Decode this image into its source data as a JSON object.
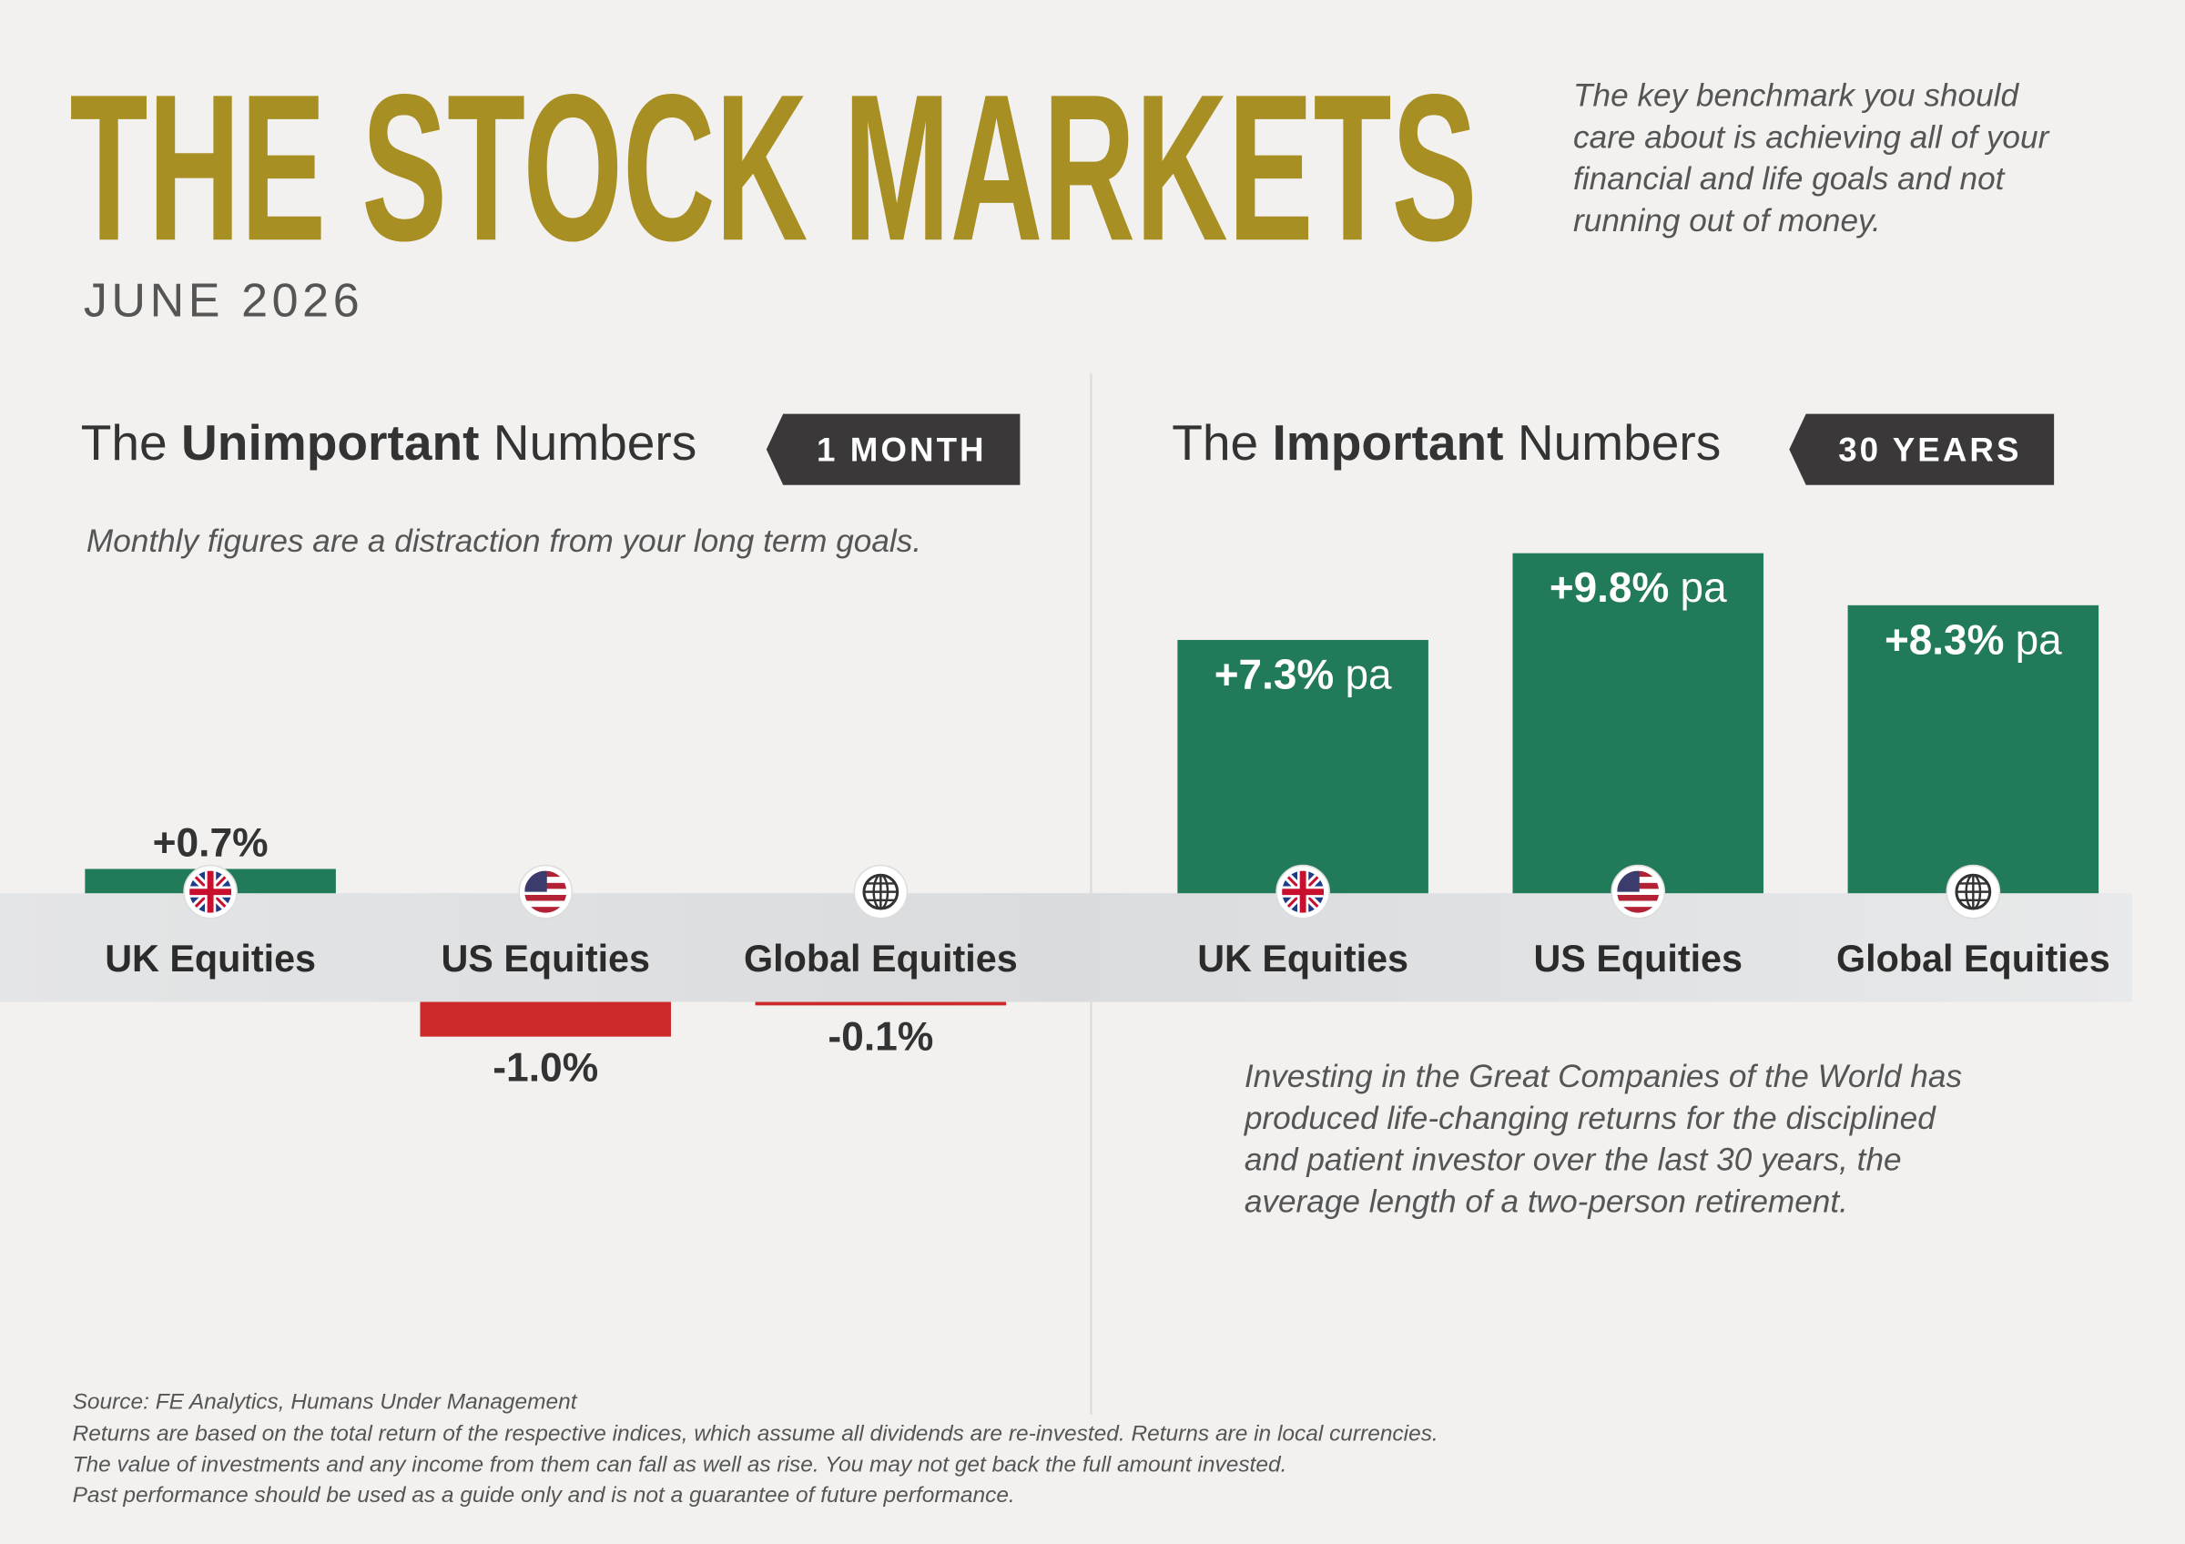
{
  "header": {
    "title": "THE STOCK MARKETS",
    "subtitle": "JUNE 2026",
    "quote": [
      "The key benchmark you should",
      "care about is achieving all of your",
      "financial and life goals and not",
      "running out of money."
    ]
  },
  "chart_data": [
    {
      "type": "bar",
      "title": [
        "The",
        "Unimportant",
        "Numbers"
      ],
      "period": "1 MONTH",
      "subtitle": "Monthly figures are a distraction from your long term goals.",
      "categories": [
        "UK Equities",
        "US Equities",
        "Global Equities"
      ],
      "values": [
        0.7,
        -1.0,
        -0.1
      ],
      "value_labels": [
        "+0.7%",
        "-1.0%",
        "-0.1%"
      ],
      "colors": [
        "#217a58",
        "#cc2a2a",
        "#cc2a2a"
      ]
    },
    {
      "type": "bar",
      "title": [
        "The",
        "Important",
        "Numbers"
      ],
      "period": "30 YEARS",
      "categories": [
        "UK Equities",
        "US Equities",
        "Global Equities"
      ],
      "values": [
        7.3,
        9.8,
        8.3
      ],
      "value_labels": [
        "+7.3%",
        "+9.8%",
        "+8.3%"
      ],
      "value_unit": "pa",
      "colors": [
        "#217a58",
        "#217a58",
        "#217a58"
      ],
      "note": [
        "Investing in the Great Companies of the World has",
        "produced life-changing returns for the disciplined",
        "and patient investor over the last 30 years, the",
        "average length of a two-person retirement."
      ]
    }
  ],
  "footer": {
    "source": "Source: FE Analytics, Humans Under Management",
    "notes": [
      "Returns are based on the total return of the respective indices, which assume all dividends are re-invested. Returns are in local currencies.",
      "The value of investments and any income from them can fall as well as rise. You may not get back the full amount invested.",
      "Past performance should be used as a guide only and is not a guarantee of future performance."
    ]
  }
}
